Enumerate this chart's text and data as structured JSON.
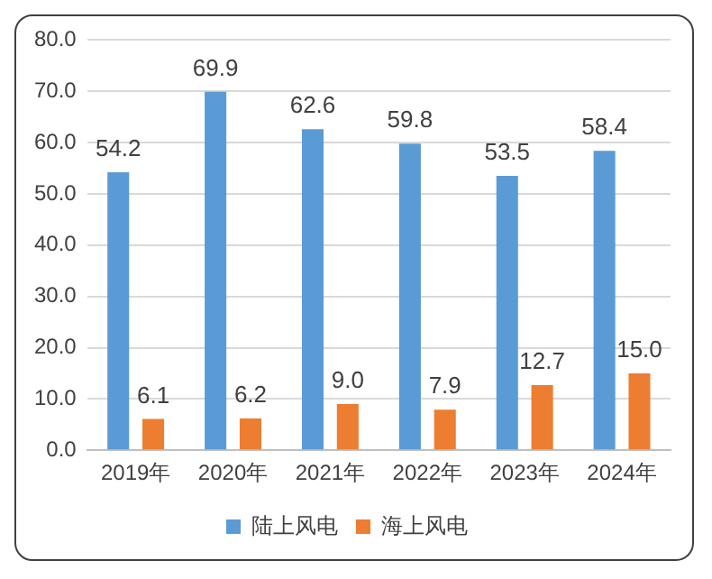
{
  "chart_data": {
    "type": "bar",
    "categories": [
      "2019年",
      "2020年",
      "2021年",
      "2022年",
      "2023年",
      "2024年"
    ],
    "series": [
      {
        "name": "陆上风电",
        "color": "#5b9bd5",
        "values": [
          54.2,
          69.9,
          62.6,
          59.8,
          53.5,
          58.4
        ],
        "value_labels": [
          "54.2",
          "69.9",
          "62.6",
          "59.8",
          "53.5",
          "58.4"
        ]
      },
      {
        "name": "海上风电",
        "color": "#ed7d31",
        "values": [
          6.1,
          6.2,
          9.0,
          7.9,
          12.7,
          15.0
        ],
        "value_labels": [
          "6.1",
          "6.2",
          "9.0",
          "7.9",
          "12.7",
          "15.0"
        ]
      }
    ],
    "ylim": [
      0,
      80
    ],
    "yticks": [
      {
        "value": 0,
        "label": "0.0"
      },
      {
        "value": 10,
        "label": "10.0"
      },
      {
        "value": 20,
        "label": "20.0"
      },
      {
        "value": 30,
        "label": "30.0"
      },
      {
        "value": 40,
        "label": "40.0"
      },
      {
        "value": 50,
        "label": "50.0"
      },
      {
        "value": 60,
        "label": "60.0"
      },
      {
        "value": 70,
        "label": "70.0"
      },
      {
        "value": 80,
        "label": "80.0"
      }
    ],
    "grid": "y",
    "legend": "bottom"
  }
}
